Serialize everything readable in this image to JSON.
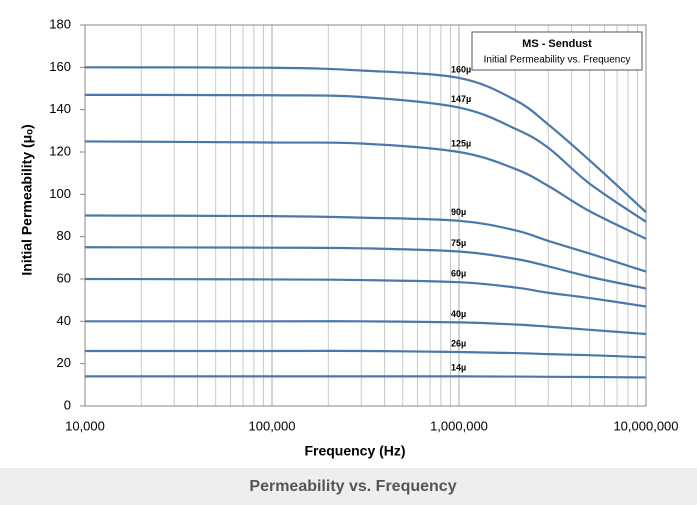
{
  "chart_data": {
    "type": "line",
    "legend_title": "MS - Sendust",
    "legend_subtitle": "Initial Permeability vs. Frequency",
    "caption": "Permeability vs. Frequency",
    "x_label": "Frequency (Hz)",
    "y_label": "Initial Permeability (μₒ)",
    "x_scale": "log",
    "grid": "x",
    "x": [
      10000,
      100000,
      300000,
      1000000,
      2000000,
      3000000,
      5000000,
      10000000
    ],
    "xlim": [
      10000,
      10000000
    ],
    "xticks": [
      {
        "value": 10000,
        "label": "10,000"
      },
      {
        "value": 100000,
        "label": "100,000"
      },
      {
        "value": 1000000,
        "label": "1,000,000"
      },
      {
        "value": 10000000,
        "label": "10,000,000"
      }
    ],
    "xminorticks": [
      20000,
      30000,
      40000,
      50000,
      60000,
      70000,
      80000,
      90000,
      200000,
      300000,
      400000,
      500000,
      600000,
      700000,
      800000,
      900000,
      2000000,
      3000000,
      4000000,
      5000000,
      6000000,
      7000000,
      8000000,
      9000000
    ],
    "ylim": [
      0,
      180
    ],
    "yticks": [
      0,
      20,
      40,
      60,
      80,
      100,
      120,
      140,
      160,
      180
    ],
    "color": "#4a78ab",
    "series": [
      {
        "name": "160µ",
        "values": [
          160,
          159.8,
          158.5,
          155,
          144.5,
          133,
          116,
          91.6
        ]
      },
      {
        "name": "147µ",
        "values": [
          147,
          146.8,
          146,
          141,
          131,
          122,
          105,
          87
        ]
      },
      {
        "name": "125µ",
        "values": [
          125,
          124.5,
          124,
          120,
          112,
          104,
          92,
          79
        ]
      },
      {
        "name": "90µ",
        "values": [
          90,
          89.7,
          89,
          87.5,
          83,
          78,
          72,
          63.5
        ]
      },
      {
        "name": "75µ",
        "values": [
          75,
          74.8,
          74.5,
          73,
          69.5,
          66,
          61,
          55.5
        ]
      },
      {
        "name": "60µ",
        "values": [
          60,
          59.8,
          59.5,
          58.5,
          56,
          53.5,
          51,
          47
        ]
      },
      {
        "name": "40µ",
        "values": [
          40,
          40,
          40,
          39.5,
          38.5,
          37.5,
          36,
          34
        ]
      },
      {
        "name": "26µ",
        "values": [
          26,
          26,
          26,
          25.5,
          25,
          24.5,
          24,
          23
        ]
      },
      {
        "name": "14µ",
        "values": [
          14,
          14,
          14,
          14,
          13.9,
          13.8,
          13.7,
          13.5
        ]
      }
    ]
  }
}
